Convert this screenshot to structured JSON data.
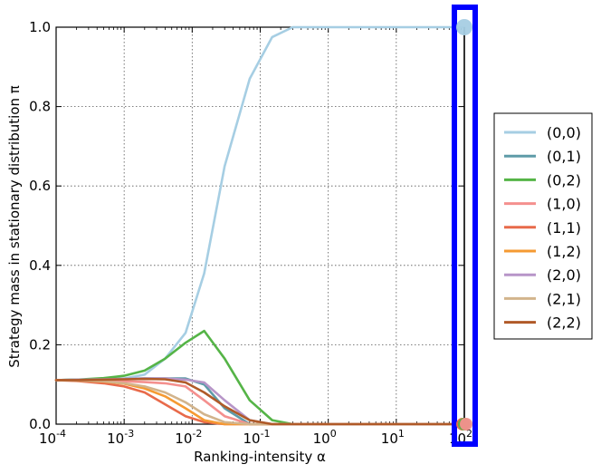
{
  "chart_data": {
    "type": "line",
    "xlabel": "Ranking-intensity α",
    "ylabel": "Strategy mass in stationary distribution π",
    "xscale": "log",
    "xlim": [
      0.0001,
      100
    ],
    "ylim": [
      0,
      1.0
    ],
    "grid": true,
    "legend_position": "right",
    "x_ticks": [
      {
        "base": "10",
        "exp": "-4"
      },
      {
        "base": "10",
        "exp": "-3"
      },
      {
        "base": "10",
        "exp": "-2"
      },
      {
        "base": "10",
        "exp": "-1"
      },
      {
        "base": "10",
        "exp": "0"
      },
      {
        "base": "10",
        "exp": "1"
      },
      {
        "base": "10",
        "exp": "2"
      }
    ],
    "y_ticks": [
      "0.0",
      "0.2",
      "0.4",
      "0.6",
      "0.8",
      "1.0"
    ],
    "x": [
      0.0001,
      0.0002,
      0.0005,
      0.001,
      0.002,
      0.004,
      0.008,
      0.015,
      0.03,
      0.07,
      0.15,
      0.3,
      1,
      10,
      100
    ],
    "series": [
      {
        "name": "(0,0)",
        "color": "#a6cee3",
        "values": [
          0.111,
          0.112,
          0.113,
          0.115,
          0.125,
          0.165,
          0.23,
          0.38,
          0.65,
          0.87,
          0.975,
          1.0,
          1.0,
          1.0,
          1.0
        ]
      },
      {
        "name": "(0,1)",
        "color": "#5e9ba8",
        "values": [
          0.111,
          0.112,
          0.113,
          0.114,
          0.115,
          0.115,
          0.115,
          0.1,
          0.04,
          0.0,
          0.0,
          0.0,
          0.0,
          0.0,
          0.0
        ]
      },
      {
        "name": "(0,2)",
        "color": "#55b447",
        "values": [
          0.111,
          0.112,
          0.116,
          0.122,
          0.135,
          0.165,
          0.205,
          0.235,
          0.165,
          0.06,
          0.01,
          0.0,
          0.0,
          0.0,
          0.0
        ]
      },
      {
        "name": "(1,0)",
        "color": "#f4908e",
        "values": [
          0.111,
          0.111,
          0.11,
          0.108,
          0.106,
          0.103,
          0.095,
          0.06,
          0.02,
          0.0,
          0.0,
          0.0,
          0.0,
          0.0,
          0.0
        ]
      },
      {
        "name": "(1,1)",
        "color": "#e86a4a",
        "values": [
          0.111,
          0.109,
          0.103,
          0.095,
          0.08,
          0.05,
          0.02,
          0.005,
          0.0,
          0.0,
          0.0,
          0.0,
          0.0,
          0.0,
          0.0
        ]
      },
      {
        "name": "(1,2)",
        "color": "#f59a32",
        "values": [
          0.111,
          0.11,
          0.107,
          0.102,
          0.09,
          0.07,
          0.04,
          0.01,
          0.0,
          0.0,
          0.0,
          0.0,
          0.0,
          0.0,
          0.0
        ]
      },
      {
        "name": "(2,0)",
        "color": "#b795c8",
        "values": [
          0.111,
          0.112,
          0.113,
          0.114,
          0.115,
          0.115,
          0.112,
          0.105,
          0.06,
          0.01,
          0.0,
          0.0,
          0.0,
          0.0,
          0.0
        ]
      },
      {
        "name": "(2,1)",
        "color": "#d2b48c",
        "values": [
          0.111,
          0.11,
          0.108,
          0.103,
          0.095,
          0.08,
          0.055,
          0.025,
          0.005,
          0.0,
          0.0,
          0.0,
          0.0,
          0.0,
          0.0
        ]
      },
      {
        "name": "(2,2)",
        "color": "#b05a28",
        "values": [
          0.111,
          0.111,
          0.112,
          0.113,
          0.114,
          0.113,
          0.105,
          0.08,
          0.045,
          0.01,
          0.0,
          0.0,
          0.0,
          0.0,
          0.0
        ]
      }
    ],
    "side_panel": {
      "highlight_color": "#0000ff",
      "markers": [
        {
          "series": "(0,0)",
          "value": 1.0
        },
        {
          "series": "(1,1)",
          "value": 0.0
        },
        {
          "series": "(0,2)",
          "value": 0.0
        },
        {
          "series": "(1,0)",
          "value": 0.0
        }
      ]
    }
  }
}
